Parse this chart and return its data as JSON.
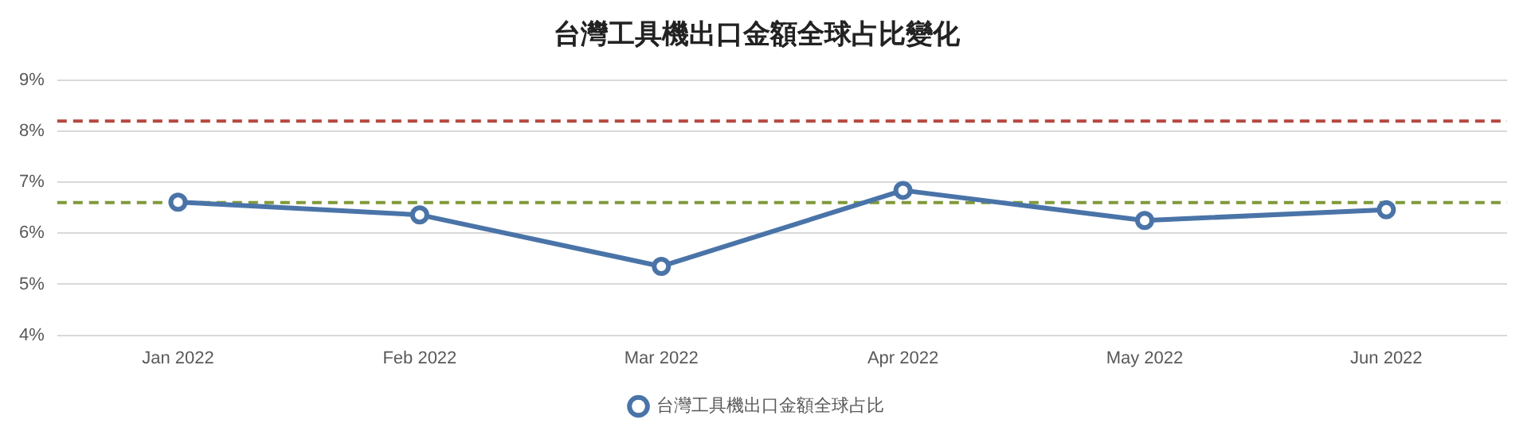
{
  "chart_data": {
    "type": "line",
    "title": "台灣工具機出口金額全球占比變化",
    "categories": [
      "Jan 2022",
      "Feb 2022",
      "Mar 2022",
      "Apr 2022",
      "May 2022",
      "Jun 2022"
    ],
    "series": [
      {
        "name": "台灣工具機出口金額全球占比",
        "color": "#4a74a8",
        "values": [
          6.61,
          6.36,
          5.35,
          6.84,
          6.25,
          6.46
        ]
      }
    ],
    "ylim": [
      4,
      9
    ],
    "yticks": [
      {
        "value": 4,
        "label": "4%"
      },
      {
        "value": 5,
        "label": "5%"
      },
      {
        "value": 6,
        "label": "6%"
      },
      {
        "value": 7,
        "label": "7%"
      },
      {
        "value": 8,
        "label": "8%"
      },
      {
        "value": 9,
        "label": "9%"
      }
    ],
    "ref_lines": [
      {
        "axis": "y",
        "value": 8.2,
        "color": "#b5473f",
        "line_style": "dashed"
      },
      {
        "axis": "y",
        "value": 6.6,
        "color": "#7f9a3a",
        "line_style": "dashed"
      }
    ],
    "grid": "y",
    "legend": "bottom",
    "marker": "circle",
    "line_style": "solid"
  }
}
